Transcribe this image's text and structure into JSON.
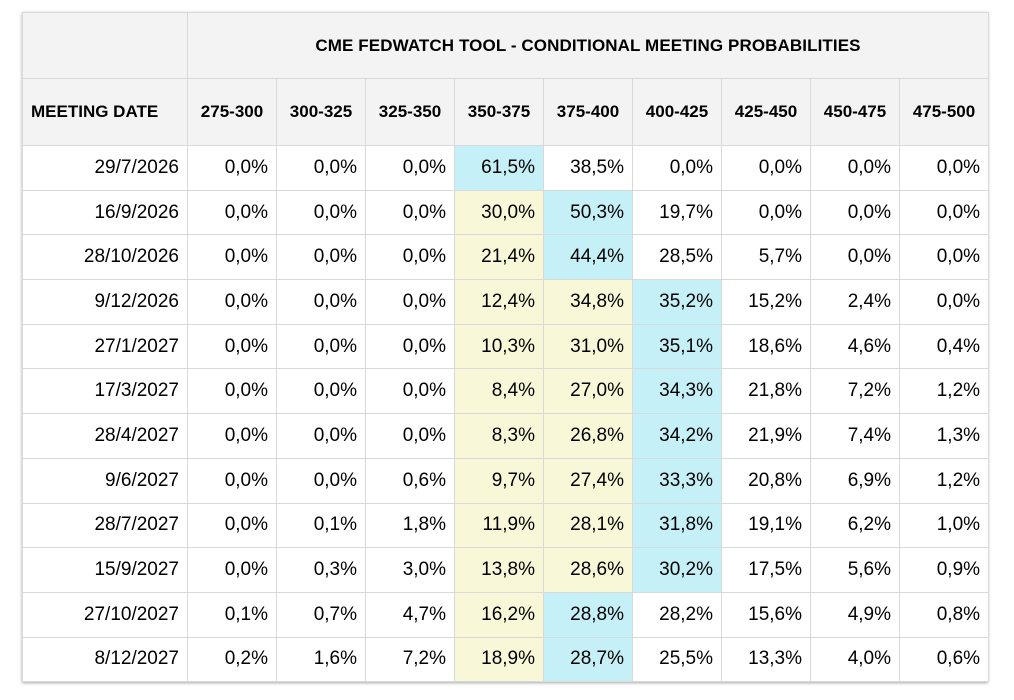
{
  "title": "CME FEDWATCH TOOL - CONDITIONAL MEETING PROBABILITIES",
  "date_header": "MEETING DATE",
  "colors": {
    "header_bg": "#f3f3f3",
    "highest_probability": "#c6f0f7",
    "other_highlight": "#f8f8d8",
    "border": "#d9d9d9"
  },
  "columns": [
    "275-300",
    "300-325",
    "325-350",
    "350-375",
    "375-400",
    "400-425",
    "425-450",
    "450-475",
    "475-500"
  ],
  "rows": [
    {
      "date": "29/7/2026",
      "values": [
        "0,0%",
        "0,0%",
        "0,0%",
        "61,5%",
        "38,5%",
        "0,0%",
        "0,0%",
        "0,0%",
        "0,0%"
      ],
      "highlights": {
        "3": "blue"
      }
    },
    {
      "date": "16/9/2026",
      "values": [
        "0,0%",
        "0,0%",
        "0,0%",
        "30,0%",
        "50,3%",
        "19,7%",
        "0,0%",
        "0,0%",
        "0,0%"
      ],
      "highlights": {
        "3": "yellow",
        "4": "blue"
      }
    },
    {
      "date": "28/10/2026",
      "values": [
        "0,0%",
        "0,0%",
        "0,0%",
        "21,4%",
        "44,4%",
        "28,5%",
        "5,7%",
        "0,0%",
        "0,0%"
      ],
      "highlights": {
        "3": "yellow",
        "4": "blue"
      }
    },
    {
      "date": "9/12/2026",
      "values": [
        "0,0%",
        "0,0%",
        "0,0%",
        "12,4%",
        "34,8%",
        "35,2%",
        "15,2%",
        "2,4%",
        "0,0%"
      ],
      "highlights": {
        "3": "yellow",
        "4": "yellow",
        "5": "blue"
      }
    },
    {
      "date": "27/1/2027",
      "values": [
        "0,0%",
        "0,0%",
        "0,0%",
        "10,3%",
        "31,0%",
        "35,1%",
        "18,6%",
        "4,6%",
        "0,4%"
      ],
      "highlights": {
        "3": "yellow",
        "4": "yellow",
        "5": "blue"
      }
    },
    {
      "date": "17/3/2027",
      "values": [
        "0,0%",
        "0,0%",
        "0,0%",
        "8,4%",
        "27,0%",
        "34,3%",
        "21,8%",
        "7,2%",
        "1,2%"
      ],
      "highlights": {
        "3": "yellow",
        "4": "yellow",
        "5": "blue"
      }
    },
    {
      "date": "28/4/2027",
      "values": [
        "0,0%",
        "0,0%",
        "0,0%",
        "8,3%",
        "26,8%",
        "34,2%",
        "21,9%",
        "7,4%",
        "1,3%"
      ],
      "highlights": {
        "3": "yellow",
        "4": "yellow",
        "5": "blue"
      }
    },
    {
      "date": "9/6/2027",
      "values": [
        "0,0%",
        "0,0%",
        "0,6%",
        "9,7%",
        "27,4%",
        "33,3%",
        "20,8%",
        "6,9%",
        "1,2%"
      ],
      "highlights": {
        "3": "yellow",
        "4": "yellow",
        "5": "blue"
      }
    },
    {
      "date": "28/7/2027",
      "values": [
        "0,0%",
        "0,1%",
        "1,8%",
        "11,9%",
        "28,1%",
        "31,8%",
        "19,1%",
        "6,2%",
        "1,0%"
      ],
      "highlights": {
        "3": "yellow",
        "4": "yellow",
        "5": "blue"
      }
    },
    {
      "date": "15/9/2027",
      "values": [
        "0,0%",
        "0,3%",
        "3,0%",
        "13,8%",
        "28,6%",
        "30,2%",
        "17,5%",
        "5,6%",
        "0,9%"
      ],
      "highlights": {
        "3": "yellow",
        "4": "yellow",
        "5": "blue"
      }
    },
    {
      "date": "27/10/2027",
      "values": [
        "0,1%",
        "0,7%",
        "4,7%",
        "16,2%",
        "28,8%",
        "28,2%",
        "15,6%",
        "4,9%",
        "0,8%"
      ],
      "highlights": {
        "3": "yellow",
        "4": "blue"
      }
    },
    {
      "date": "8/12/2027",
      "values": [
        "0,2%",
        "1,6%",
        "7,2%",
        "18,9%",
        "28,7%",
        "25,5%",
        "13,3%",
        "4,0%",
        "0,6%"
      ],
      "highlights": {
        "3": "yellow",
        "4": "blue"
      }
    }
  ]
}
